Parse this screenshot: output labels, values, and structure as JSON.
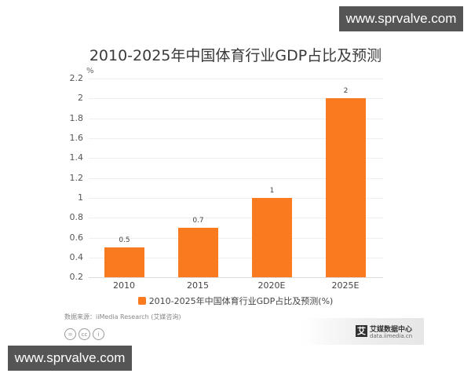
{
  "watermarks": [
    "www.sprvalve.com",
    "www.sprvalve.com"
  ],
  "chart_data": {
    "type": "bar",
    "title": "2010-2025年中国体育行业GDP占比及预测",
    "ylabel": "%",
    "xlabel": "",
    "categories": [
      "2010",
      "2015",
      "2020E",
      "2025E"
    ],
    "values": [
      0.5,
      0.7,
      1,
      2
    ],
    "value_labels": [
      "0.5",
      "0.7",
      "1",
      "2"
    ],
    "ylim": [
      0.2,
      2.2
    ],
    "yticks": [
      "2.2",
      "2",
      "1.8",
      "1.6",
      "1.4",
      "1.2",
      "1",
      "0.8",
      "0.6",
      "0.4",
      "0.2"
    ],
    "grid": true,
    "legend": {
      "position": "bottom",
      "entries": [
        "2010-2025年中国体育行业GDP占比及预测(%)"
      ]
    },
    "color": "#f97a1f"
  },
  "footer": {
    "source": "数据来源：iiMedia Research (艾媒咨询)",
    "license_icons": [
      "=",
      "cc",
      "i"
    ],
    "brand_logo": "艾",
    "brand_name": "艾媒数据中心",
    "brand_url": "data.iimedia.cn"
  }
}
